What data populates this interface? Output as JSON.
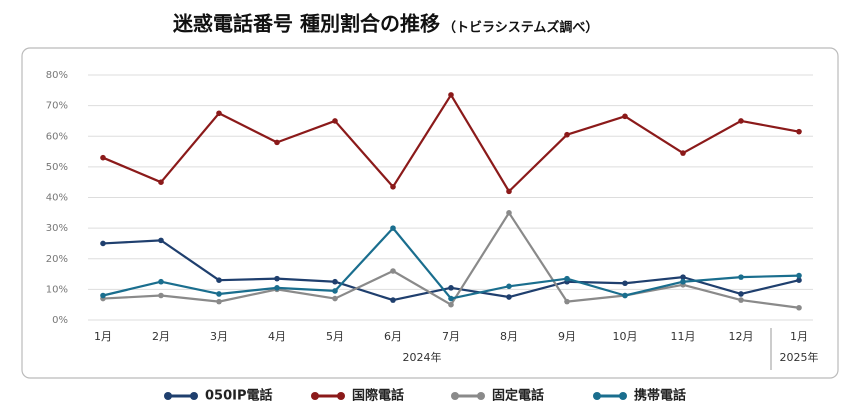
{
  "chart_data": {
    "type": "line",
    "title": "迷惑電話番号 種別割合の推移",
    "subtitle": "（トビラシステムズ調べ）",
    "categories": [
      "1月",
      "2月",
      "3月",
      "4月",
      "5月",
      "6月",
      "7月",
      "8月",
      "9月",
      "10月",
      "11月",
      "12月",
      "1月"
    ],
    "x_group_labels": [
      "2024年",
      "2025年"
    ],
    "series": [
      {
        "name": "050IP電話",
        "color": "#1f3f6e",
        "values": [
          25,
          26,
          13,
          13.5,
          12.5,
          6.5,
          10.5,
          7.5,
          12.5,
          12,
          14,
          8.5,
          13
        ]
      },
      {
        "name": "国際電話",
        "color": "#8b1a1a",
        "values": [
          53,
          45,
          67.5,
          58,
          65,
          43.5,
          73.5,
          42,
          60.5,
          66.5,
          54.5,
          65,
          61.5
        ]
      },
      {
        "name": "固定電話",
        "color": "#8a8a8a",
        "values": [
          7,
          8,
          6,
          10,
          7,
          16,
          5,
          35,
          6,
          8,
          11.5,
          6.5,
          4
        ]
      },
      {
        "name": "携帯電話",
        "color": "#1a6e8e",
        "values": [
          8,
          12.5,
          8.5,
          10.5,
          9.5,
          30,
          7,
          11,
          13.5,
          8,
          12.5,
          14,
          14.5
        ]
      }
    ],
    "ylim": [
      0,
      80
    ],
    "yticks": [
      {
        "value": 0,
        "label": "0%"
      },
      {
        "value": 10,
        "label": "10%"
      },
      {
        "value": 20,
        "label": "20%"
      },
      {
        "value": 30,
        "label": "30%"
      },
      {
        "value": 40,
        "label": "40%"
      },
      {
        "value": 50,
        "label": "50%"
      },
      {
        "value": 60,
        "label": "60%"
      },
      {
        "value": 70,
        "label": "70%"
      },
      {
        "value": 80,
        "label": "80%"
      }
    ],
    "grid": true,
    "legend": "bottom"
  }
}
